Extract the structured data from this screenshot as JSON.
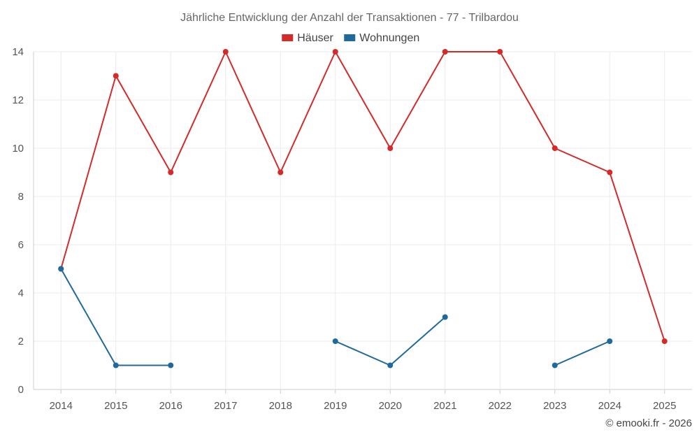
{
  "chart_data": {
    "type": "line",
    "title": "Jährliche Entwicklung der Anzahl der Transaktionen - 77 - Trilbardou",
    "categories": [
      "2014",
      "2015",
      "2016",
      "2017",
      "2018",
      "2019",
      "2020",
      "2021",
      "2022",
      "2023",
      "2024",
      "2025"
    ],
    "series": [
      {
        "name": "Häuser",
        "color": "#d42a2a",
        "values": [
          5,
          13,
          9,
          14,
          9,
          14,
          10,
          14,
          14,
          10,
          9,
          2
        ]
      },
      {
        "name": "Wohnungen",
        "color": "#1f6a9a",
        "values": [
          5,
          1,
          1,
          null,
          null,
          2,
          1,
          3,
          null,
          1,
          2,
          null
        ]
      }
    ],
    "ylim": [
      0,
      14
    ],
    "yticks": [
      0,
      2,
      4,
      6,
      8,
      10,
      12,
      14
    ],
    "grid": true,
    "legend_position": "top-center"
  },
  "credit": "© emooki.fr - 2026"
}
